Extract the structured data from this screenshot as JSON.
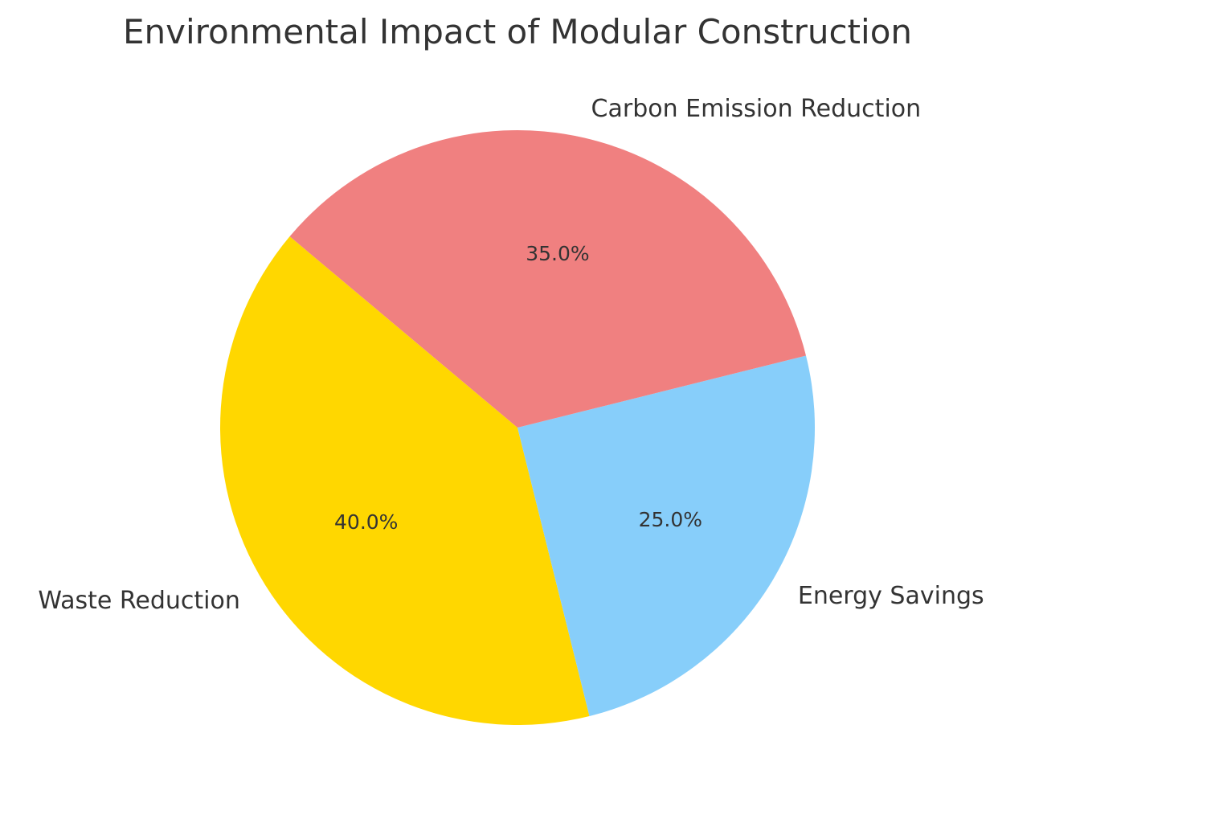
{
  "chart_data": {
    "type": "pie",
    "title": "Environmental Impact of Modular Construction",
    "labels": [
      "Waste Reduction",
      "Energy Savings",
      "Carbon Emission Reduction"
    ],
    "values": [
      40,
      25,
      35
    ],
    "percent_labels": [
      "40.0%",
      "25.0%",
      "35.0%"
    ],
    "colors": [
      "#FFD700",
      "#87CEFA",
      "#F08080"
    ],
    "start_angle_deg": 140,
    "direction": "counterclockwise",
    "legend": "none"
  }
}
